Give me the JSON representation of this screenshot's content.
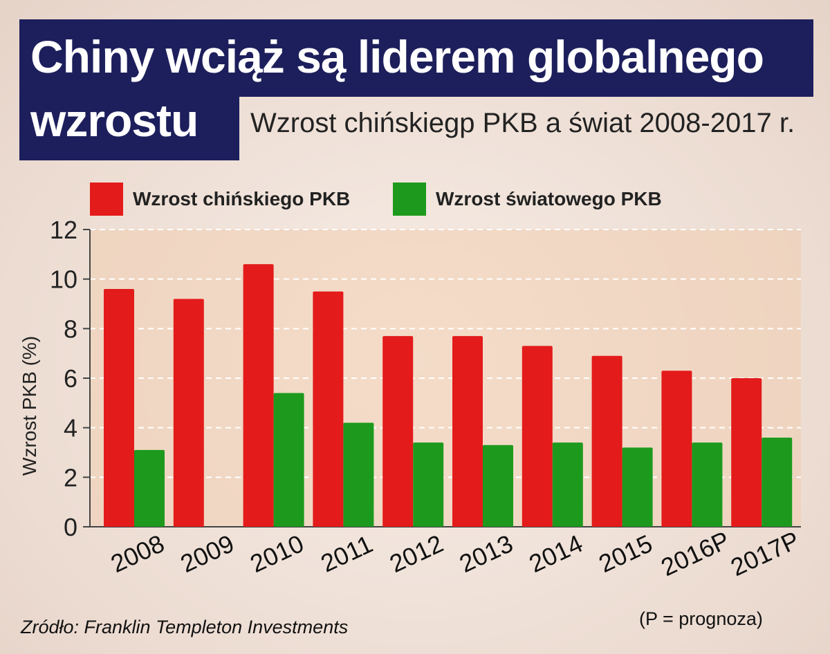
{
  "colors": {
    "title_bg": "#1d1f5c",
    "china": "#e31b1b",
    "world": "#1d9a1d",
    "plot_bg": "#f0cdb0"
  },
  "header": {
    "title": "Chiny wciąż są liderem globalnego wzrostu",
    "subtitle": "Wzrost chińskiegp PKB a świat 2008-2017 r."
  },
  "footer": {
    "source": "Zródło: Franklin Templeton Investments",
    "note": "(P = prognoza)"
  },
  "chart_data": {
    "type": "bar",
    "categories": [
      "2008",
      "2009",
      "2010",
      "2011",
      "2012",
      "2013",
      "2014",
      "2015",
      "2016P",
      "2017P"
    ],
    "series": [
      {
        "name": "Wzrost chińskiego PKB",
        "color": "#e31b1b",
        "values": [
          9.6,
          9.2,
          10.6,
          9.5,
          7.7,
          7.7,
          7.3,
          6.9,
          6.3,
          6.0
        ]
      },
      {
        "name": "Wzrost światowego PKB",
        "color": "#1d9a1d",
        "values": [
          3.1,
          null,
          5.4,
          4.2,
          3.4,
          3.3,
          3.4,
          3.2,
          3.4,
          3.6
        ]
      }
    ],
    "ylabel": "Wzrost PKB (%)",
    "xlabel": "",
    "ylim": [
      0,
      12
    ],
    "yticks": [
      0,
      2,
      4,
      6,
      8,
      10,
      12
    ],
    "grid": true,
    "legend": "top"
  }
}
